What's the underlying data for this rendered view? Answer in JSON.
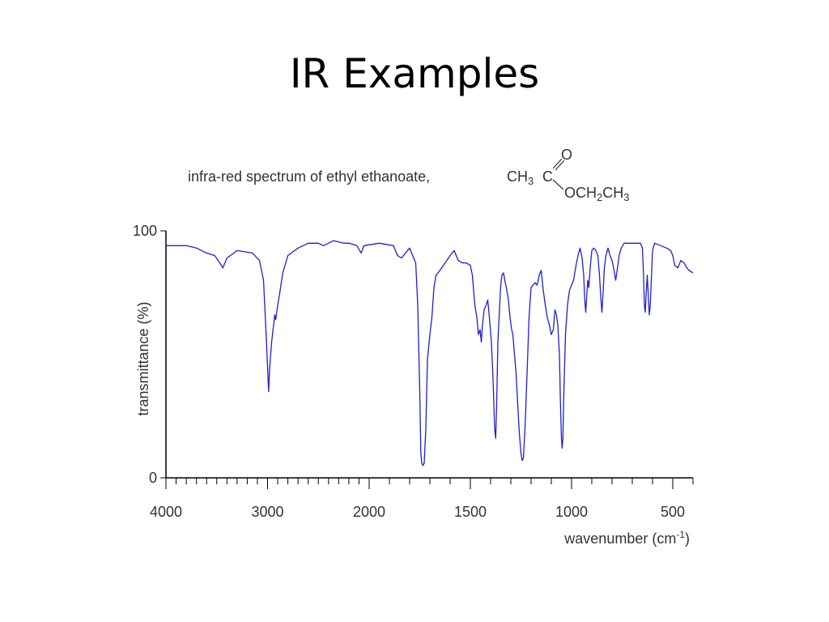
{
  "slide": {
    "title": "IR Examples"
  },
  "chart_data": {
    "type": "line",
    "title_text": "infra-red spectrum of ethyl ethanoate,",
    "formula": {
      "left": "CH",
      "left_sub": "3",
      "carbon": "C",
      "carbonyl_o": "O",
      "ester_part": "OCH",
      "ester_sub1": "2",
      "ester_part2": "CH",
      "ester_sub2": "3"
    },
    "xlabel": "wavenumber (cm",
    "xlabel_sup": "-1",
    "xlabel_end": ")",
    "ylabel": "transmittance (%)",
    "xlim": [
      4000,
      400
    ],
    "ylim": [
      0,
      100
    ],
    "x_scale": "piecewise: 4000-2000 compressed, 2000-400 expanded",
    "xticks": [
      4000,
      3000,
      2000,
      1500,
      1000,
      500
    ],
    "yticks": [
      0,
      100
    ],
    "color": "#1f1fd0",
    "series": [
      {
        "points": [
          [
            4000,
            94
          ],
          [
            3800,
            94
          ],
          [
            3700,
            93
          ],
          [
            3600,
            91
          ],
          [
            3520,
            90
          ],
          [
            3470,
            87
          ],
          [
            3440,
            85
          ],
          [
            3400,
            89
          ],
          [
            3300,
            92
          ],
          [
            3150,
            91
          ],
          [
            3080,
            88
          ],
          [
            3040,
            80
          ],
          [
            3010,
            55
          ],
          [
            2990,
            35
          ],
          [
            2980,
            44
          ],
          [
            2960,
            55
          ],
          [
            2940,
            62
          ],
          [
            2930,
            66
          ],
          [
            2920,
            64
          ],
          [
            2900,
            70
          ],
          [
            2880,
            75
          ],
          [
            2850,
            83
          ],
          [
            2800,
            90
          ],
          [
            2700,
            93
          ],
          [
            2600,
            95
          ],
          [
            2500,
            95
          ],
          [
            2450,
            94
          ],
          [
            2350,
            96
          ],
          [
            2250,
            95
          ],
          [
            2200,
            95
          ],
          [
            2120,
            94
          ],
          [
            2080,
            91
          ],
          [
            2050,
            94
          ],
          [
            1950,
            95
          ],
          [
            1880,
            94
          ],
          [
            1860,
            90
          ],
          [
            1840,
            89
          ],
          [
            1820,
            91
          ],
          [
            1800,
            93
          ],
          [
            1780,
            89
          ],
          [
            1770,
            87
          ],
          [
            1760,
            70
          ],
          [
            1750,
            35
          ],
          [
            1745,
            10
          ],
          [
            1740,
            6
          ],
          [
            1735,
            5
          ],
          [
            1728,
            6
          ],
          [
            1720,
            20
          ],
          [
            1712,
            48
          ],
          [
            1700,
            58
          ],
          [
            1690,
            65
          ],
          [
            1680,
            77
          ],
          [
            1670,
            82
          ],
          [
            1650,
            84
          ],
          [
            1600,
            90
          ],
          [
            1580,
            92
          ],
          [
            1560,
            88
          ],
          [
            1540,
            87
          ],
          [
            1520,
            87
          ],
          [
            1500,
            86
          ],
          [
            1490,
            82
          ],
          [
            1478,
            70
          ],
          [
            1468,
            65
          ],
          [
            1460,
            58
          ],
          [
            1452,
            60
          ],
          [
            1446,
            55
          ],
          [
            1440,
            62
          ],
          [
            1432,
            68
          ],
          [
            1422,
            70
          ],
          [
            1414,
            72
          ],
          [
            1406,
            65
          ],
          [
            1396,
            55
          ],
          [
            1388,
            40
          ],
          [
            1380,
            20
          ],
          [
            1375,
            16
          ],
          [
            1370,
            30
          ],
          [
            1364,
            55
          ],
          [
            1356,
            68
          ],
          [
            1350,
            78
          ],
          [
            1344,
            82
          ],
          [
            1336,
            83
          ],
          [
            1330,
            80
          ],
          [
            1320,
            76
          ],
          [
            1312,
            72
          ],
          [
            1304,
            65
          ],
          [
            1296,
            60
          ],
          [
            1290,
            58
          ],
          [
            1282,
            50
          ],
          [
            1274,
            42
          ],
          [
            1266,
            30
          ],
          [
            1258,
            18
          ],
          [
            1250,
            10
          ],
          [
            1244,
            7
          ],
          [
            1238,
            8
          ],
          [
            1230,
            20
          ],
          [
            1220,
            42
          ],
          [
            1210,
            65
          ],
          [
            1200,
            77
          ],
          [
            1190,
            78
          ],
          [
            1180,
            79
          ],
          [
            1170,
            78
          ],
          [
            1160,
            82
          ],
          [
            1150,
            84
          ],
          [
            1140,
            76
          ],
          [
            1130,
            70
          ],
          [
            1120,
            65
          ],
          [
            1110,
            62
          ],
          [
            1100,
            58
          ],
          [
            1090,
            60
          ],
          [
            1082,
            68
          ],
          [
            1075,
            66
          ],
          [
            1068,
            62
          ],
          [
            1060,
            50
          ],
          [
            1055,
            30
          ],
          [
            1050,
            16
          ],
          [
            1047,
            12
          ],
          [
            1043,
            16
          ],
          [
            1038,
            35
          ],
          [
            1030,
            58
          ],
          [
            1020,
            70
          ],
          [
            1010,
            76
          ],
          [
            1000,
            78
          ],
          [
            990,
            80
          ],
          [
            978,
            86
          ],
          [
            968,
            90
          ],
          [
            958,
            93
          ],
          [
            948,
            89
          ],
          [
            940,
            82
          ],
          [
            935,
            72
          ],
          [
            930,
            67
          ],
          [
            925,
            74
          ],
          [
            920,
            80
          ],
          [
            915,
            77
          ],
          [
            908,
            85
          ],
          [
            900,
            92
          ],
          [
            890,
            93
          ],
          [
            880,
            92
          ],
          [
            870,
            90
          ],
          [
            862,
            82
          ],
          [
            855,
            72
          ],
          [
            850,
            67
          ],
          [
            845,
            74
          ],
          [
            838,
            85
          ],
          [
            830,
            90
          ],
          [
            820,
            93
          ],
          [
            810,
            90
          ],
          [
            800,
            88
          ],
          [
            790,
            84
          ],
          [
            782,
            80
          ],
          [
            775,
            84
          ],
          [
            765,
            90
          ],
          [
            755,
            93
          ],
          [
            740,
            95
          ],
          [
            700,
            95
          ],
          [
            660,
            95
          ],
          [
            650,
            93
          ],
          [
            645,
            83
          ],
          [
            640,
            70
          ],
          [
            636,
            67
          ],
          [
            631,
            75
          ],
          [
            626,
            82
          ],
          [
            621,
            74
          ],
          [
            616,
            66
          ],
          [
            611,
            70
          ],
          [
            606,
            80
          ],
          [
            600,
            92
          ],
          [
            590,
            95
          ],
          [
            560,
            94
          ],
          [
            530,
            93
          ],
          [
            510,
            92
          ],
          [
            500,
            90
          ],
          [
            490,
            86
          ],
          [
            475,
            85
          ],
          [
            460,
            88
          ],
          [
            445,
            87
          ],
          [
            430,
            85
          ],
          [
            420,
            84
          ],
          [
            400,
            83
          ]
        ]
      }
    ]
  }
}
